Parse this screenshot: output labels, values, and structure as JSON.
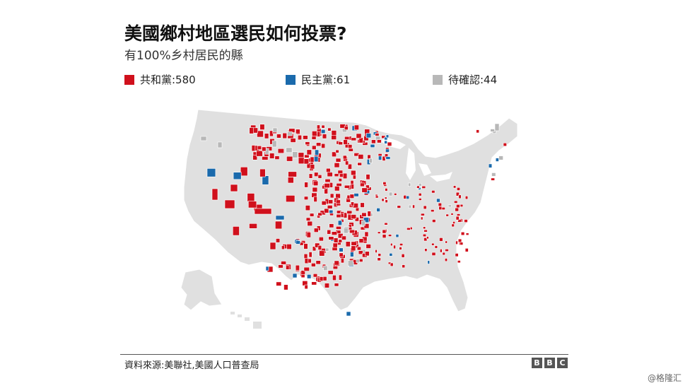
{
  "header": {
    "title": "美國鄉村地區選民如何投票?",
    "subtitle": "有100%乡村居民的縣"
  },
  "legend": [
    {
      "label": "共和黨:580",
      "color": "#d0101c"
    },
    {
      "label": "民主黨:61",
      "color": "#1a6aac"
    },
    {
      "label": "待確認:44",
      "color": "#b8b8b8"
    }
  ],
  "map": {
    "base_color": "#e0e0e0",
    "border_color": "#ffffff"
  },
  "footer": {
    "source": "資料來源:美聯社,美國人口普查局",
    "brand": [
      "B",
      "B",
      "C"
    ],
    "watermark": "@格隆汇"
  }
}
